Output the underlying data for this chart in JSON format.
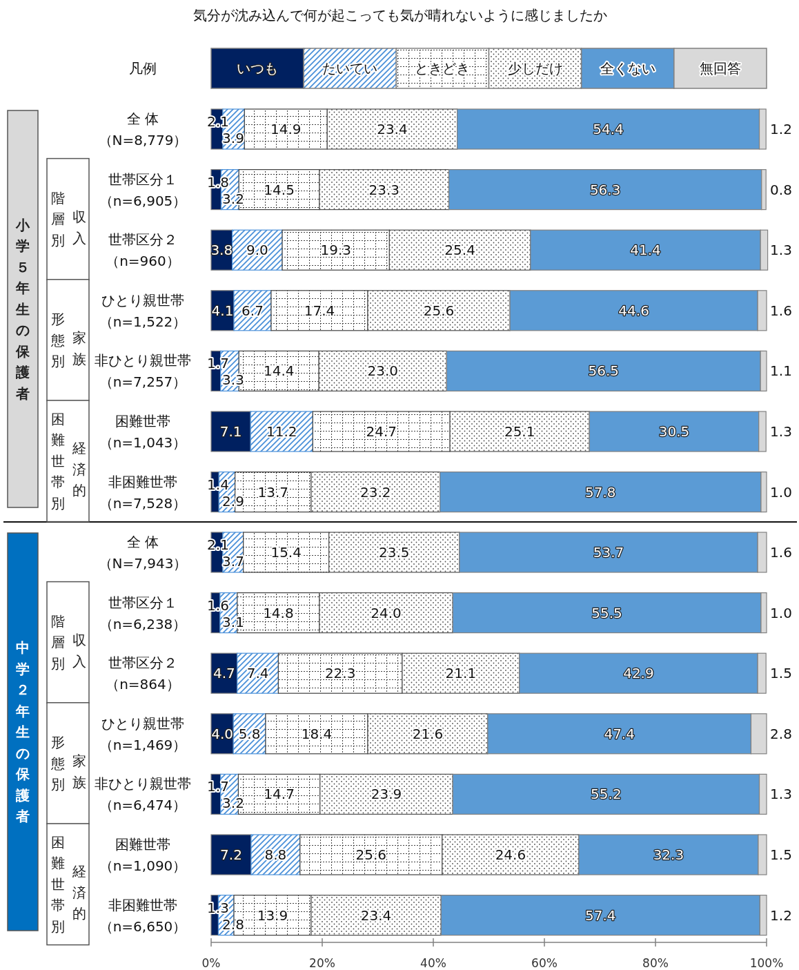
{
  "chart_data": {
    "type": "bar",
    "orientation": "horizontal",
    "stacked": true,
    "title": "気分が沈み込んで何が起こっても気が晴れないように感じましたか",
    "legend_title": "凡例",
    "categories": [
      "全 体（N=8,779）",
      "世帯区分１（n=6,905）",
      "世帯区分２（n=960）",
      "ひとり親世帯（n=1,522）",
      "非ひとり親世帯（n=7,257）",
      "困難世帯（n=1,043）",
      "非困難世帯（n=7,528）",
      "全 体（N=7,943）",
      "世帯区分１（n=6,238）",
      "世帯区分２（n=864）",
      "ひとり親世帯（n=1,469）",
      "非ひとり親世帯（n=6,474）",
      "困難世帯（n=1,090）",
      "非困難世帯（n=6,650）"
    ],
    "series": [
      {
        "name": "いつも",
        "color": "#002060",
        "values": [
          2.1,
          1.8,
          3.8,
          4.1,
          1.7,
          7.1,
          1.4,
          2.1,
          1.6,
          4.7,
          4.0,
          1.7,
          7.2,
          1.3
        ],
        "value_labels": [
          "2.1",
          "1.8",
          "3.8",
          "4.1",
          "1.7",
          "7.1",
          "1.4",
          "2.1",
          "1.6",
          "4.7",
          "4.0",
          "1.7",
          "7.2",
          "1.3"
        ]
      },
      {
        "name": "たいてい",
        "color": "#4a90d9",
        "values": [
          3.9,
          3.2,
          9.0,
          6.7,
          3.3,
          11.2,
          2.9,
          3.7,
          3.1,
          7.4,
          5.8,
          3.2,
          8.8,
          2.8
        ],
        "value_labels": [
          "3.9",
          "3.2",
          "9.0",
          "6.7",
          "3.3",
          "11.2",
          "2.9",
          "3.7",
          "3.1",
          "7.4",
          "5.8",
          "3.2",
          "8.8",
          "2.8"
        ]
      },
      {
        "name": "ときどき",
        "color": "#404040",
        "values": [
          14.9,
          14.5,
          19.3,
          17.4,
          14.4,
          24.7,
          13.7,
          15.4,
          14.8,
          22.3,
          18.4,
          14.7,
          25.6,
          13.9
        ],
        "value_labels": [
          "14.9",
          "14.5",
          "19.3",
          "17.4",
          "14.4",
          "24.7",
          "13.7",
          "15.4",
          "14.8",
          "22.3",
          "18.4",
          "14.7",
          "25.6",
          "13.9"
        ]
      },
      {
        "name": "少しだけ",
        "color": "#505050",
        "values": [
          23.4,
          23.3,
          25.4,
          25.6,
          23.0,
          25.1,
          23.2,
          23.5,
          24.0,
          21.1,
          21.6,
          23.9,
          24.6,
          23.4
        ],
        "value_labels": [
          "23.4",
          "23.3",
          "25.4",
          "25.6",
          "23.0",
          "25.1",
          "23.2",
          "23.5",
          "24.0",
          "21.1",
          "21.6",
          "23.9",
          "24.6",
          "23.4"
        ]
      },
      {
        "name": "全くない",
        "color": "#5b9bd5",
        "values": [
          54.4,
          56.3,
          41.4,
          44.6,
          56.5,
          30.5,
          57.8,
          53.7,
          55.5,
          42.9,
          47.4,
          55.2,
          32.3,
          57.4
        ],
        "value_labels": [
          "54.4",
          "56.3",
          "41.4",
          "44.6",
          "56.5",
          "30.5",
          "57.8",
          "53.7",
          "55.5",
          "42.9",
          "47.4",
          "55.2",
          "32.3",
          "57.4"
        ]
      },
      {
        "name": "無回答",
        "color": "#d9d9d9",
        "values": [
          1.2,
          0.8,
          1.3,
          1.6,
          1.1,
          1.3,
          1.0,
          1.6,
          1.0,
          1.5,
          2.8,
          1.3,
          1.5,
          1.2
        ],
        "value_labels": [
          "1.2",
          "0.8",
          "1.3",
          "1.6",
          "1.1",
          "1.3",
          "1.0",
          "1.6",
          "1.0",
          "1.5",
          "2.8",
          "1.3",
          "1.5",
          "1.2"
        ]
      }
    ],
    "xlim": [
      0,
      100
    ],
    "xticks": [
      {
        "value": 0,
        "label": "0%"
      },
      {
        "value": 20,
        "label": "20%"
      },
      {
        "value": 40,
        "label": "40%"
      },
      {
        "value": 60,
        "label": "60%"
      },
      {
        "value": 80,
        "label": "80%"
      },
      {
        "value": 100,
        "label": "100%"
      }
    ],
    "legend": "top",
    "grid": false,
    "annotations": [
      "小学５年生の保護者",
      "収入階層別",
      "家族形態別",
      "経済的",
      "困難世帯別",
      "中学２年生の保護者",
      "収入階層別",
      "家族形態別",
      "経済的",
      "困難世帯別"
    ]
  }
}
